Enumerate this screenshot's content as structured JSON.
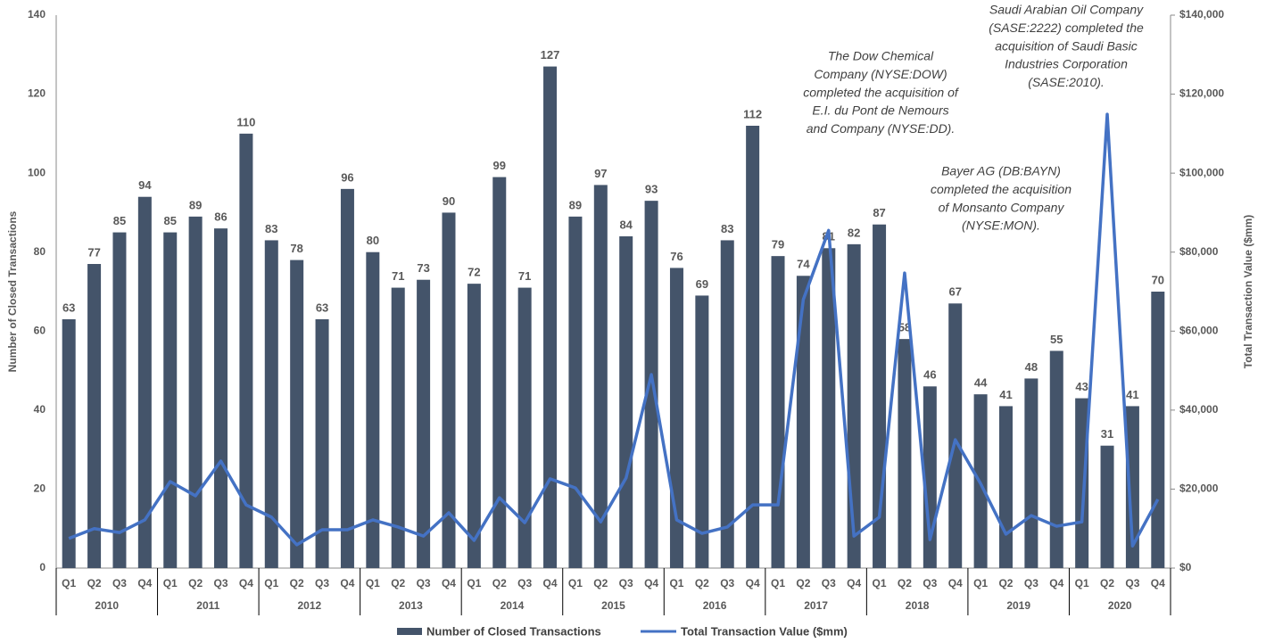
{
  "chart_data": {
    "type": "bar_line",
    "y_axis_label": "Number of Closed Transactions",
    "y2_axis_label": "Total Transaction Value ($mm)",
    "categories": [
      "Q1",
      "Q2",
      "Q3",
      "Q4",
      "Q1",
      "Q2",
      "Q3",
      "Q4",
      "Q1",
      "Q2",
      "Q3",
      "Q4",
      "Q1",
      "Q2",
      "Q3",
      "Q4",
      "Q1",
      "Q2",
      "Q3",
      "Q4",
      "Q1",
      "Q2",
      "Q3",
      "Q4",
      "Q1",
      "Q2",
      "Q3",
      "Q4",
      "Q1",
      "Q2",
      "Q3",
      "Q4",
      "Q1",
      "Q2",
      "Q3",
      "Q4",
      "Q1",
      "Q2",
      "Q3",
      "Q4",
      "Q1",
      "Q2",
      "Q3",
      "Q4"
    ],
    "groups": [
      "2010",
      "2011",
      "2012",
      "2013",
      "2014",
      "2015",
      "2016",
      "2017",
      "2018",
      "2019",
      "2020"
    ],
    "series": [
      {
        "name": "Number of Closed Transactions",
        "color": "#44546a",
        "kind": "bar",
        "values": [
          63,
          77,
          85,
          94,
          85,
          89,
          86,
          110,
          83,
          78,
          63,
          96,
          80,
          71,
          73,
          90,
          72,
          99,
          71,
          127,
          89,
          97,
          84,
          93,
          76,
          69,
          83,
          112,
          79,
          74,
          81,
          82,
          87,
          58,
          46,
          67,
          44,
          41,
          48,
          55,
          43,
          31,
          41,
          70
        ]
      },
      {
        "name": "Total Transaction Value ($mm)",
        "color": "#4472c4",
        "kind": "line",
        "axis": "y2",
        "values": [
          7500,
          10000,
          9000,
          12200,
          21900,
          18300,
          27100,
          16000,
          12900,
          5900,
          9700,
          9700,
          12200,
          10400,
          8100,
          14000,
          7000,
          17800,
          11500,
          22600,
          20300,
          11700,
          22800,
          49000,
          12200,
          8800,
          10400,
          16000,
          16000,
          68000,
          85500,
          8100,
          12900,
          74700,
          7200,
          32500,
          21400,
          8600,
          13300,
          10600,
          11700,
          114900,
          5600,
          17400
        ]
      }
    ],
    "ylim": [
      0,
      140
    ],
    "yticks": [
      0,
      20,
      40,
      60,
      80,
      100,
      120,
      140
    ],
    "y2lim": [
      0,
      140000
    ],
    "y2ticks": [
      {
        "value": 0,
        "label": "$0"
      },
      {
        "value": 20000,
        "label": "$20,000"
      },
      {
        "value": 40000,
        "label": "$40,000"
      },
      {
        "value": 60000,
        "label": "$60,000"
      },
      {
        "value": 80000,
        "label": "$80,000"
      },
      {
        "value": 100000,
        "label": "$100,000"
      },
      {
        "value": 120000,
        "label": "$120,000"
      },
      {
        "value": 140000,
        "label": "$140,000"
      }
    ],
    "annotations": [
      {
        "lines": [
          "Saudi Arabian Oil Company",
          "(SASE:2222) completed the",
          "acquisition of Saudi Basic",
          "Industries Corporation",
          "(SASE:2010)."
        ]
      },
      {
        "lines": [
          "The Dow Chemical",
          "Company (NYSE:DOW)",
          "completed the acquisition of",
          "E.I. du Pont de Nemours",
          "and Company (NYSE:DD)."
        ]
      },
      {
        "lines": [
          "Bayer AG (DB:BAYN)",
          "completed the acquisition",
          "of Monsanto Company",
          "(NYSE:MON)."
        ]
      }
    ]
  }
}
